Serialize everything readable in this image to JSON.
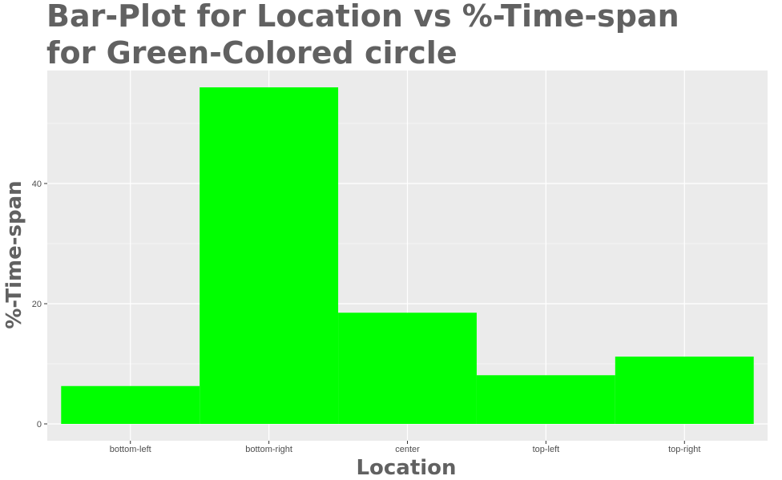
{
  "chart_data": {
    "type": "bar",
    "title_lines": [
      "Bar-Plot for Location vs %-Time-span",
      "for Green-Colored circle"
    ],
    "xlabel": "Location",
    "ylabel": "%-Time-span",
    "categories": [
      "bottom-left",
      "bottom-right",
      "center",
      "top-left",
      "top-right"
    ],
    "values": [
      6.3,
      56.0,
      18.5,
      8.1,
      11.2
    ],
    "yticks": [
      0,
      20,
      40
    ],
    "ylim": [
      -2.8,
      58.8
    ],
    "bar_color": "#00FF00",
    "panel_background": "#EBEBEB",
    "grid_color": "#FFFFFF",
    "grid": true
  }
}
